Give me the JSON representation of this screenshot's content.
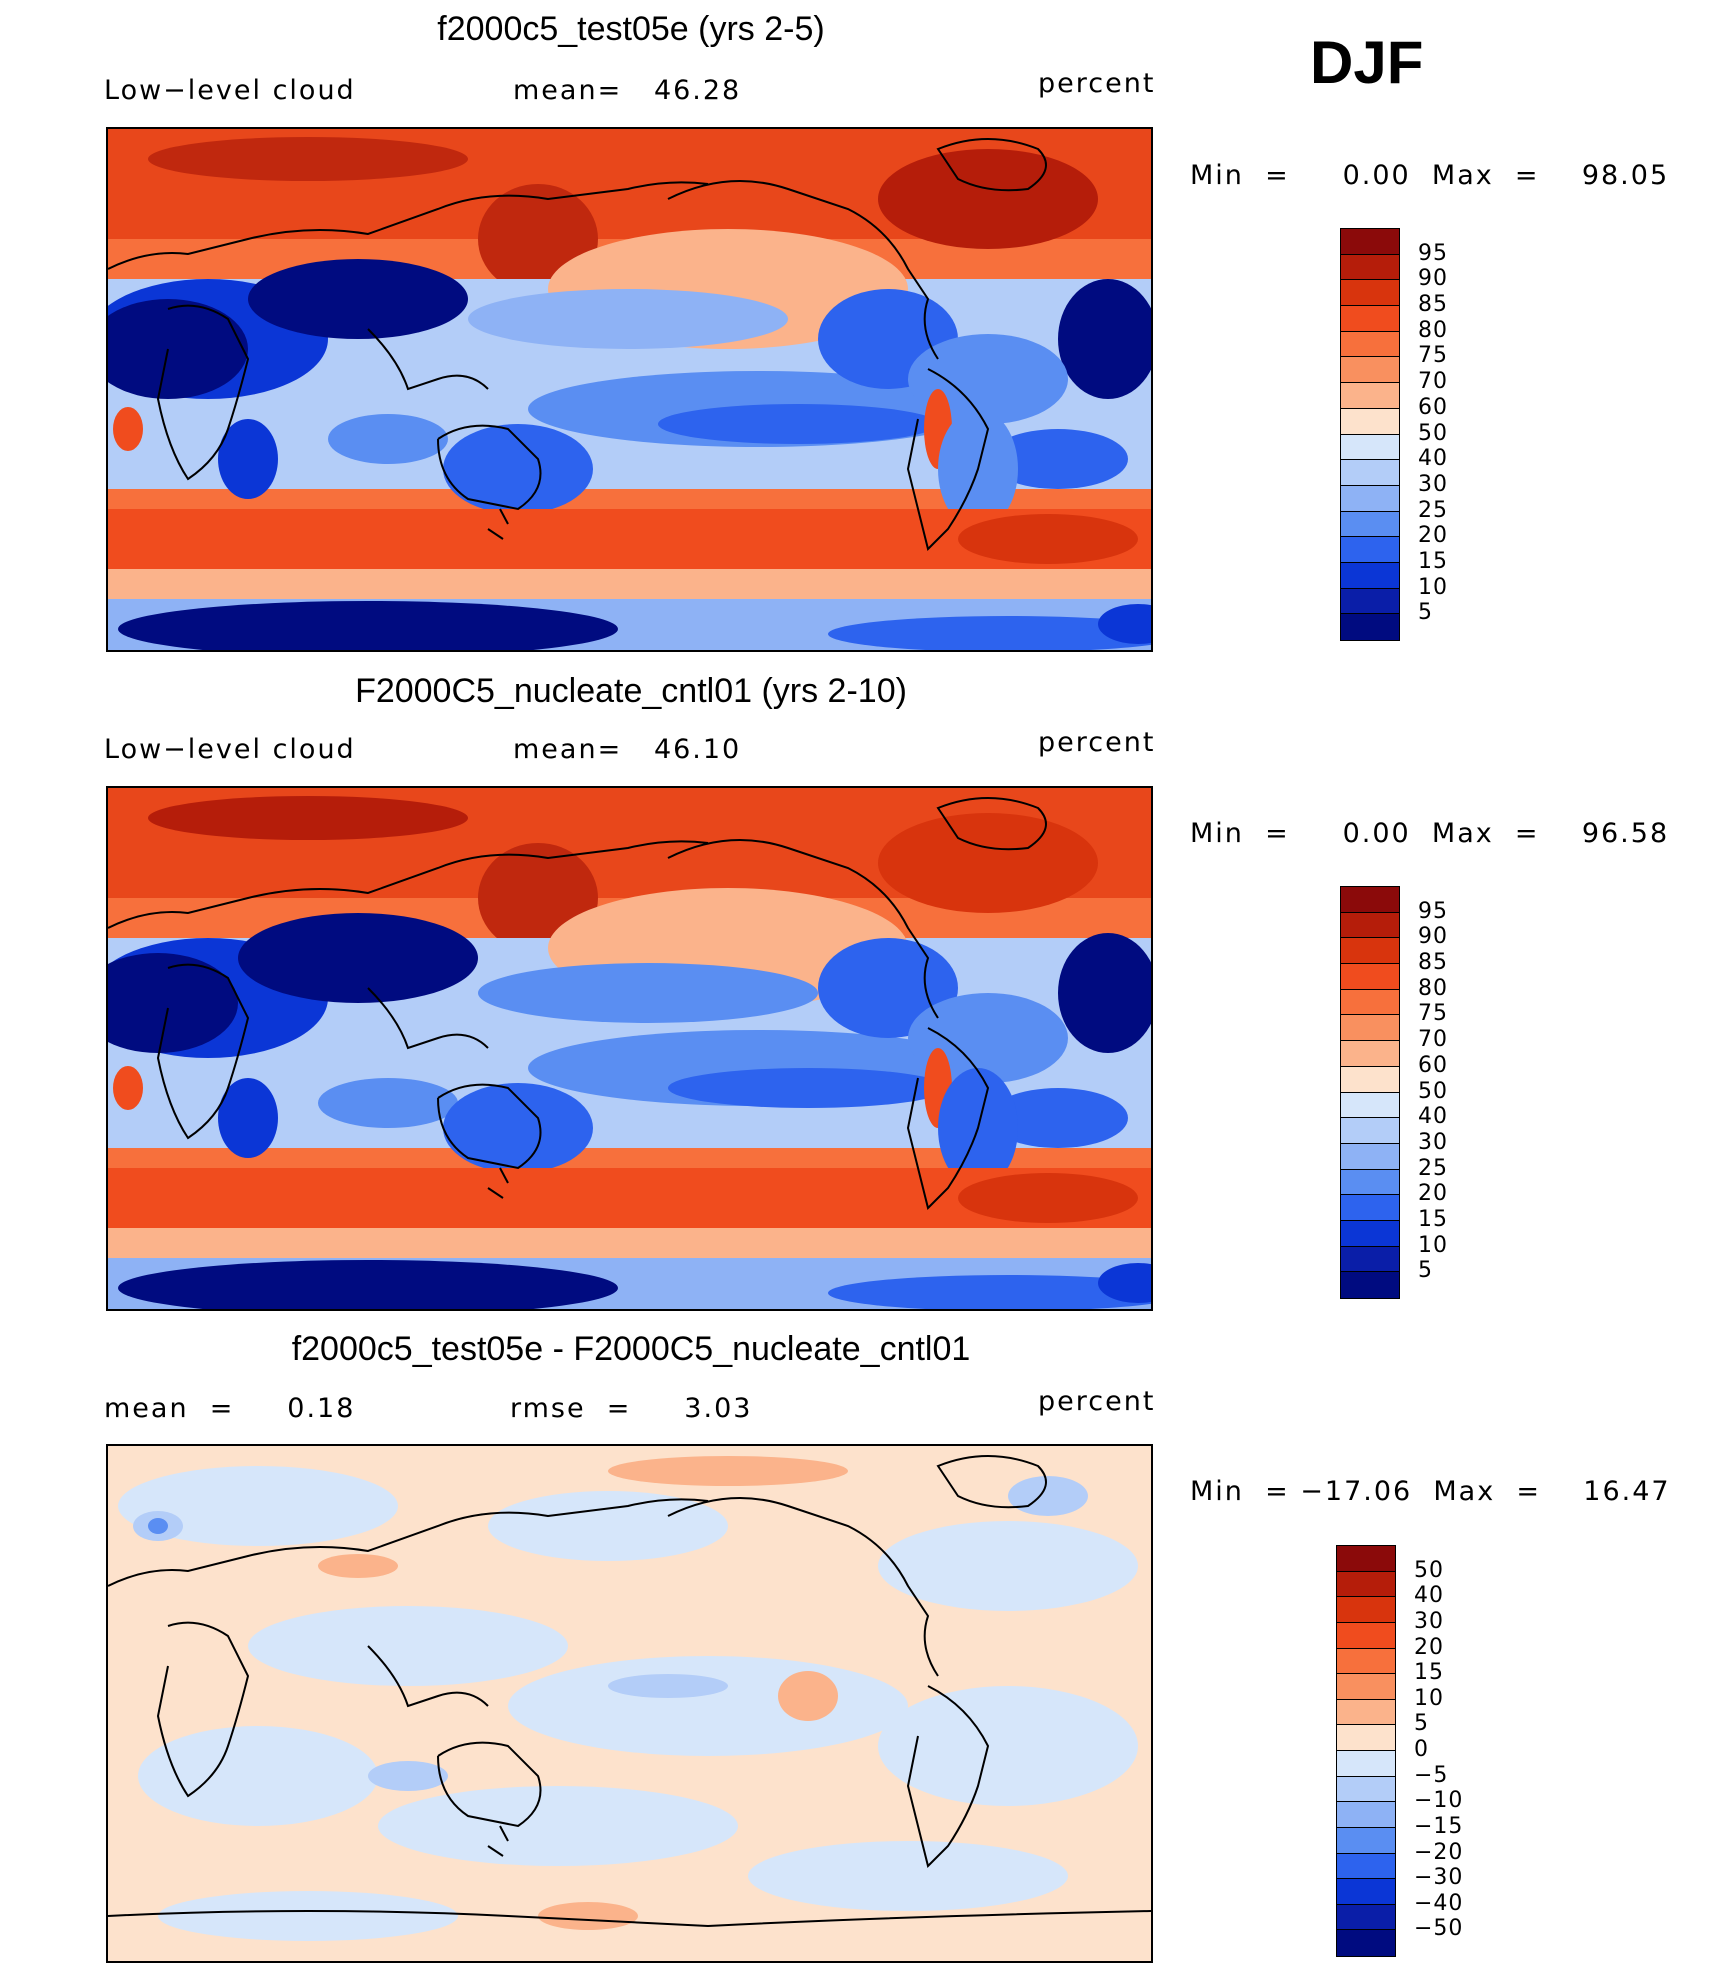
{
  "season": "DJF",
  "units": "percent",
  "panels": [
    {
      "title": "f2000c5_test05e (yrs 2-5)",
      "left_label": "Low−level cloud",
      "center_label": "mean=   46.28",
      "right_label": "percent",
      "minmax": "Min  =     0.00  Max  =    98.05",
      "colorbar": {
        "levels": [
          "95",
          "90",
          "85",
          "80",
          "75",
          "70",
          "60",
          "50",
          "40",
          "30",
          "25",
          "20",
          "15",
          "10",
          "5"
        ],
        "colors": [
          "#8b0a0a",
          "#b51d0a",
          "#d8340d",
          "#f04c1e",
          "#f7703c",
          "#f9905f",
          "#fbb38b",
          "#fde2cc",
          "#d6e6fa",
          "#b3cdf8",
          "#8eb2f5",
          "#5a8ef2",
          "#2d63ee",
          "#0b36d6",
          "#0a1ea8",
          "#000b80"
        ]
      },
      "map_type": "absolute"
    },
    {
      "title": "F2000C5_nucleate_cntl01 (yrs 2-10)",
      "left_label": "Low−level cloud",
      "center_label": "mean=   46.10",
      "right_label": "percent",
      "minmax": "Min  =     0.00  Max  =    96.58",
      "colorbar": {
        "levels": [
          "95",
          "90",
          "85",
          "80",
          "75",
          "70",
          "60",
          "50",
          "40",
          "30",
          "25",
          "20",
          "15",
          "10",
          "5"
        ],
        "colors": [
          "#8b0a0a",
          "#b51d0a",
          "#d8340d",
          "#f04c1e",
          "#f7703c",
          "#f9905f",
          "#fbb38b",
          "#fde2cc",
          "#d6e6fa",
          "#b3cdf8",
          "#8eb2f5",
          "#5a8ef2",
          "#2d63ee",
          "#0b36d6",
          "#0a1ea8",
          "#000b80"
        ]
      },
      "map_type": "absolute"
    },
    {
      "title": "f2000c5_test05e - F2000C5_nucleate_cntl01",
      "left_label": "mean  =     0.18",
      "center_label": "rmse  =     3.03",
      "right_label": "percent",
      "minmax": "Min  = −17.06  Max  =    16.47",
      "colorbar": {
        "levels": [
          "50",
          "40",
          "30",
          "20",
          "15",
          "10",
          "5",
          "0",
          "−5",
          "−10",
          "−15",
          "−20",
          "−30",
          "−40",
          "−50"
        ],
        "colors": [
          "#8b0a0a",
          "#b51d0a",
          "#d8340d",
          "#f04c1e",
          "#f7703c",
          "#f9905f",
          "#fbb38b",
          "#fde2cc",
          "#d6e6fa",
          "#b3cdf8",
          "#8eb2f5",
          "#5a8ef2",
          "#2d63ee",
          "#0b36d6",
          "#0a1ea8",
          "#000b80"
        ]
      },
      "map_type": "difference"
    }
  ]
}
